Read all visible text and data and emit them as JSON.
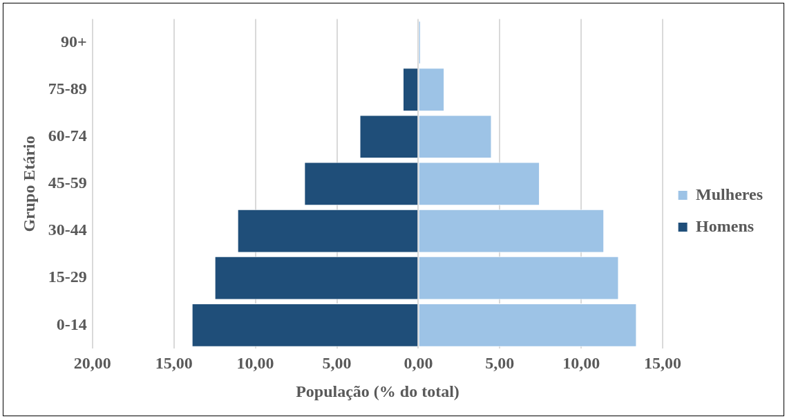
{
  "chart_data": {
    "type": "bar",
    "orientation": "horizontal",
    "stacked": true,
    "xlabel": "População (% do total)",
    "ylabel": "Grupo Etário",
    "categories": [
      "90+",
      "75-89",
      "60-74",
      "45-59",
      "30-44",
      "15-29",
      "0-14"
    ],
    "series": [
      {
        "name": "Mulheres",
        "color": "#9dc3e6",
        "values": [
          0.15,
          1.6,
          4.5,
          7.45,
          11.4,
          12.3,
          13.4
        ]
      },
      {
        "name": "Homens",
        "color": "#1f4e79",
        "values": [
          null,
          -0.95,
          -3.6,
          -7.0,
          -11.1,
          -12.5,
          -13.9
        ]
      }
    ],
    "xlim": [
      -20,
      15
    ],
    "xticks": [
      {
        "value": -20,
        "label": "20,00"
      },
      {
        "value": -15,
        "label": "15,00"
      },
      {
        "value": -10,
        "label": "10,00"
      },
      {
        "value": -5,
        "label": "5,00"
      },
      {
        "value": 0,
        "label": "0,00"
      },
      {
        "value": 5,
        "label": "5,00"
      },
      {
        "value": 10,
        "label": "10,00"
      },
      {
        "value": 15,
        "label": "15,00"
      }
    ],
    "grid": "x",
    "legend": "right"
  }
}
